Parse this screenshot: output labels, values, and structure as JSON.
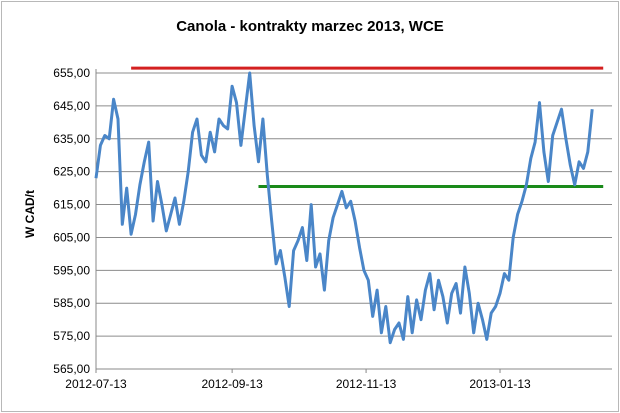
{
  "chart_data": {
    "type": "line",
    "title": "Canola - kontrakty marzec 2013, WCE",
    "xlabel": "",
    "ylabel": "W CAD/t",
    "ylim": [
      565,
      655
    ],
    "y_ticks": [
      "655,00",
      "645,00",
      "635,00",
      "625,00",
      "615,00",
      "605,00",
      "595,00",
      "585,00",
      "575,00",
      "565,00"
    ],
    "x_ticks": [
      "2012-07-13",
      "2012-09-13",
      "2012-11-13",
      "2013-01-13"
    ],
    "grid": "horizontal",
    "series": [
      {
        "color": "#4a86c8",
        "x": [
          "2012-07-13",
          "2012-07-15",
          "2012-07-17",
          "2012-07-19",
          "2012-07-21",
          "2012-07-23",
          "2012-07-25",
          "2012-07-27",
          "2012-07-29",
          "2012-07-31",
          "2012-08-02",
          "2012-08-04",
          "2012-08-06",
          "2012-08-08",
          "2012-08-10",
          "2012-08-12",
          "2012-08-14",
          "2012-08-16",
          "2012-08-18",
          "2012-08-20",
          "2012-08-22",
          "2012-08-24",
          "2012-08-26",
          "2012-08-28",
          "2012-08-30",
          "2012-09-01",
          "2012-09-03",
          "2012-09-05",
          "2012-09-07",
          "2012-09-09",
          "2012-09-11",
          "2012-09-13",
          "2012-09-15",
          "2012-09-17",
          "2012-09-19",
          "2012-09-21",
          "2012-09-23",
          "2012-09-25",
          "2012-09-27",
          "2012-09-29",
          "2012-10-01",
          "2012-10-03",
          "2012-10-05",
          "2012-10-07",
          "2012-10-09",
          "2012-10-11",
          "2012-10-13",
          "2012-10-15",
          "2012-10-17",
          "2012-10-19",
          "2012-10-21",
          "2012-10-23",
          "2012-10-25",
          "2012-10-27",
          "2012-10-29",
          "2012-10-31",
          "2012-11-02",
          "2012-11-04",
          "2012-11-06",
          "2012-11-08",
          "2012-11-10",
          "2012-11-12",
          "2012-11-14",
          "2012-11-16",
          "2012-11-18",
          "2012-11-20",
          "2012-11-22",
          "2012-11-24",
          "2012-11-26",
          "2012-11-28",
          "2012-11-30",
          "2012-12-02",
          "2012-12-04",
          "2012-12-06",
          "2012-12-08",
          "2012-12-10",
          "2012-12-12",
          "2012-12-14",
          "2012-12-16",
          "2012-12-18",
          "2012-12-20",
          "2012-12-22",
          "2012-12-24",
          "2012-12-26",
          "2012-12-28",
          "2012-12-30",
          "2013-01-01",
          "2013-01-03",
          "2013-01-05",
          "2013-01-07",
          "2013-01-09",
          "2013-01-11",
          "2013-01-13",
          "2013-01-15",
          "2013-01-17",
          "2013-01-19",
          "2013-01-21",
          "2013-01-23",
          "2013-01-25",
          "2013-01-27",
          "2013-01-29",
          "2013-01-31",
          "2013-02-02",
          "2013-02-04",
          "2013-02-06",
          "2013-02-08",
          "2013-02-10",
          "2013-02-12",
          "2013-02-14",
          "2013-02-16",
          "2013-02-18",
          "2013-02-20",
          "2013-02-22",
          "2013-02-24"
        ],
        "values": [
          623,
          633,
          636,
          635,
          647,
          641,
          609,
          620,
          606,
          612,
          621,
          628,
          634,
          610,
          622,
          615,
          607,
          612,
          617,
          609,
          616,
          625,
          637,
          641,
          630,
          628,
          637,
          631,
          641,
          639,
          638,
          651,
          646,
          633,
          644,
          655,
          639,
          628,
          641,
          624,
          610,
          597,
          601,
          593,
          584,
          601,
          604,
          608,
          598,
          615,
          596,
          600,
          589,
          604,
          611,
          615,
          619,
          614,
          616,
          610,
          602,
          595,
          592,
          581,
          589,
          576,
          584,
          573,
          577,
          579,
          574,
          587,
          576,
          586,
          580,
          589,
          594,
          583,
          592,
          587,
          579,
          588,
          591,
          582,
          596,
          588,
          576,
          585,
          580,
          574,
          582,
          584,
          588,
          594,
          592,
          605,
          612,
          616,
          621,
          629,
          634,
          646,
          631,
          622,
          636,
          640,
          644,
          635,
          627,
          621,
          628,
          626,
          631,
          644
        ]
      }
    ],
    "reference_lines": [
      {
        "color": "#d42020",
        "value": 656.5,
        "from": "2012-07-29",
        "to": "2013-03-01"
      },
      {
        "color": "#1a8a1a",
        "value": 620.5,
        "from": "2012-09-25",
        "to": "2013-03-01"
      }
    ]
  }
}
